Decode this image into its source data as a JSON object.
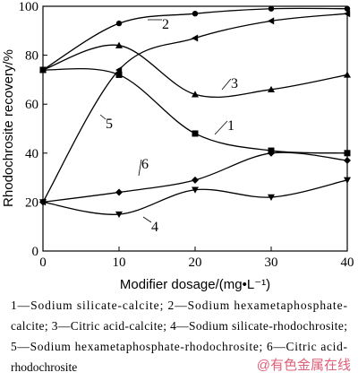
{
  "chart_data": {
    "type": "line",
    "x_label": "Modifier dosage/(mg•L⁻¹)",
    "y_label": "Rhodochrosite recovery/%",
    "x": [
      0,
      10,
      20,
      30,
      40
    ],
    "series": [
      {
        "label": "1",
        "marker": "square",
        "color": "#000000",
        "values": [
          74,
          72,
          48,
          41,
          40
        ]
      },
      {
        "label": "2",
        "marker": "circle",
        "color": "#000000",
        "values": [
          74,
          93,
          97,
          99,
          99
        ]
      },
      {
        "label": "3",
        "marker": "triangle-up",
        "color": "#000000",
        "values": [
          74,
          84,
          64,
          66,
          72
        ]
      },
      {
        "label": "4",
        "marker": "triangle-down",
        "color": "#000000",
        "values": [
          20,
          15,
          25,
          22,
          29
        ]
      },
      {
        "label": "5",
        "marker": "triangle-left",
        "color": "#000000",
        "values": [
          20,
          74,
          87,
          94,
          97
        ]
      },
      {
        "label": "6",
        "marker": "diamond",
        "color": "#000000",
        "values": [
          20,
          24,
          29,
          40,
          37
        ]
      }
    ],
    "xlim": [
      0,
      40
    ],
    "xticks": [
      0,
      10,
      20,
      30,
      40
    ],
    "ylim": [
      0,
      100
    ],
    "yticks": [
      0,
      20,
      40,
      60,
      80,
      100
    ],
    "caption": [
      "1—Sodium silicate-calcite; 2—Sodium hexametaphosphate-",
      "calcite; 3—Citric acid-calcite; 4—Sodium silicate-rhodochrosite;",
      "5—Sodium hexametaphosphate-rhodochrosite; 6—Citric acid-",
      "rhodochrosite"
    ],
    "watermark": "@有色金属在线"
  }
}
